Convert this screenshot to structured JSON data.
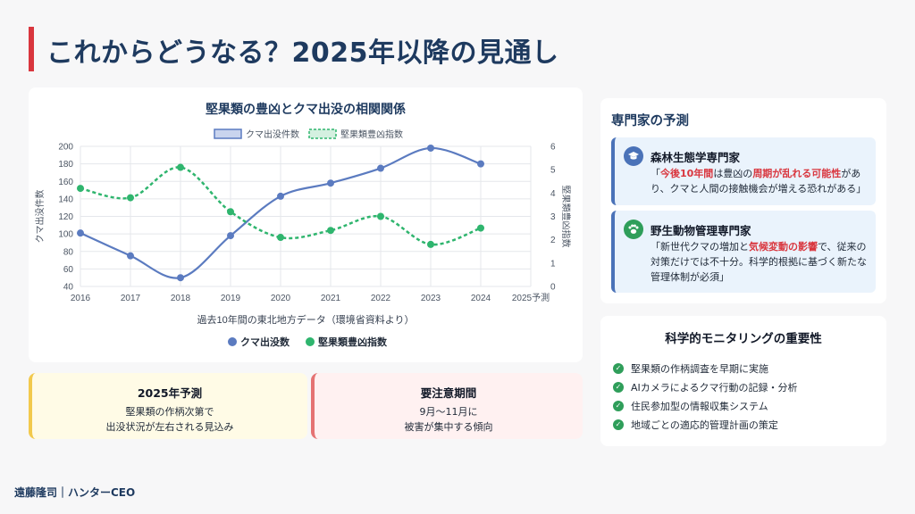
{
  "page": {
    "title": "これからどうなる？2025年以降の見通し",
    "footer": "遠藤隆司｜ハンターCEO"
  },
  "chart_data": {
    "type": "line",
    "title": "堅果類の豊凶とクマ出没の相関関係",
    "x": [
      "2016",
      "2017",
      "2018",
      "2019",
      "2020",
      "2021",
      "2022",
      "2023",
      "2024",
      "2025予測"
    ],
    "series": [
      {
        "name": "クマ出没件数",
        "legend_bottom": "クマ出没数",
        "axis": "left",
        "color": "#5b7bc0",
        "style": "solid",
        "values": [
          101,
          75,
          50,
          98,
          143,
          158,
          175,
          198,
          180,
          null
        ]
      },
      {
        "name": "堅果類豊凶指数",
        "legend_bottom": "堅果類豊凶指数",
        "axis": "right",
        "color": "#2fb56e",
        "style": "dashed",
        "values": [
          4.2,
          3.8,
          5.1,
          3.2,
          2.1,
          2.4,
          3.0,
          1.8,
          2.5,
          null
        ]
      }
    ],
    "ylabel": "クマ出没件数",
    "ylim": [
      40,
      200
    ],
    "yticks": [
      40,
      60,
      80,
      100,
      120,
      140,
      160,
      180,
      200
    ],
    "y2label": "堅果類豊凶指数",
    "y2lim": [
      0,
      6
    ],
    "y2ticks": [
      0,
      1,
      2,
      3,
      4,
      5,
      6
    ],
    "xlabel": "過去10年間の東北地方データ（環境省資料より）",
    "grid": true,
    "legend": "top-center"
  },
  "forecast": {
    "title": "2025年予測",
    "text": [
      "堅果類の作柄次第で",
      "出没状況が左右される見込み"
    ]
  },
  "caution": {
    "title": "要注意期間",
    "text": [
      "9月〜11月に",
      "被害が集中する傾向"
    ]
  },
  "experts": {
    "title": "専門家の予測",
    "items": [
      {
        "icon": "graduate-icon",
        "name": "森林生態学専門家",
        "q1": "「",
        "h1": "今後10年間",
        "q2": "は豊凶の",
        "h2": "周期が乱れる可能性",
        "q3": "があり、クマと人間の接触機会が増える恐れがある」"
      },
      {
        "icon": "paw-icon",
        "name": "野生動物管理専門家",
        "q1": "「新世代クマの増加と",
        "h1": "気候変動の影響",
        "q2": "で、従来の対策だけでは不十分。科学的根拠に基づく新たな管理体制が必須」",
        "h2": "",
        "q3": ""
      }
    ]
  },
  "monitoring": {
    "title": "科学的モニタリングの重要性",
    "items": [
      "堅果類の作柄調査を早期に実施",
      "AIカメラによるクマ行動の記録・分析",
      "住民参加型の情報収集システム",
      "地域ごとの適応的管理計画の策定"
    ]
  }
}
